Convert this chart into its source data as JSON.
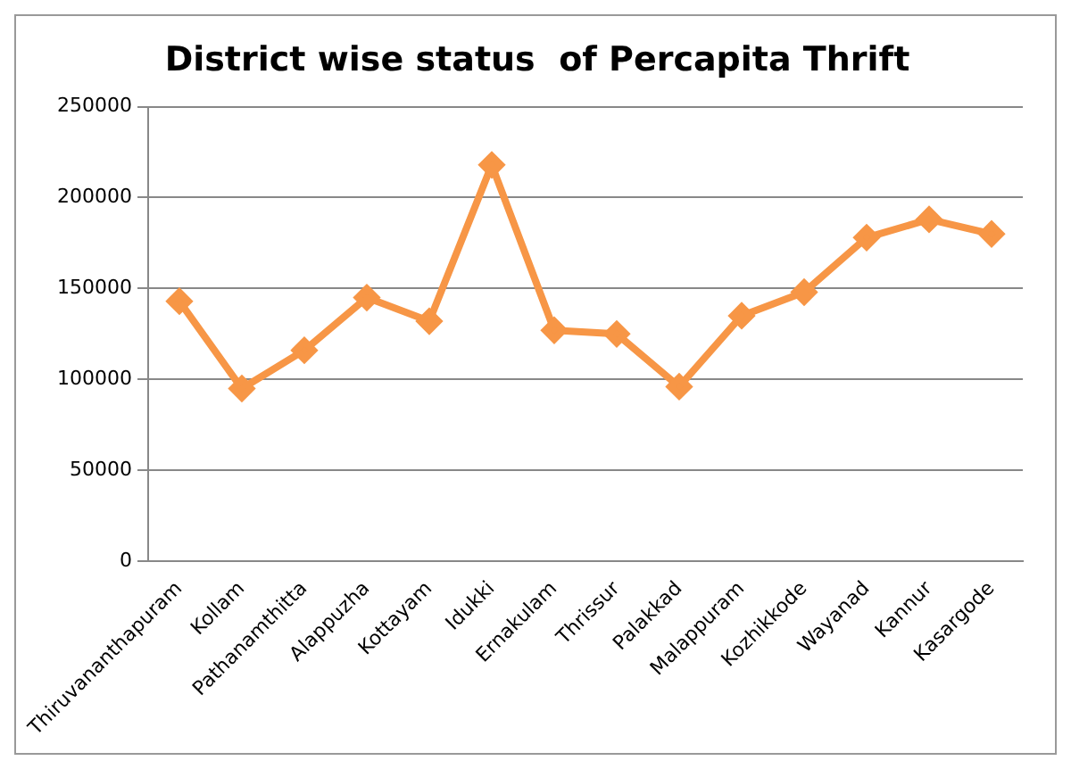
{
  "chart_data": {
    "type": "line",
    "title": "District wise status  of Percapita Thrift",
    "categories": [
      "Thiruvananthapuram",
      "Kollam",
      "Pathanamthitta",
      "Alappuzha",
      "Kottayam",
      "Idukki",
      "Ernakulam",
      "Thrissur",
      "Palakkad",
      "Malappuram",
      "Kozhikkode",
      "Wayanad",
      "Kannur",
      "Kasargode"
    ],
    "series": [
      {
        "color": "#f79646",
        "values": [
          143000,
          95000,
          116000,
          145000,
          132000,
          218000,
          127000,
          125000,
          96000,
          135000,
          148000,
          178000,
          188000,
          180000
        ]
      }
    ],
    "ylim": [
      0,
      250000
    ],
    "yticks": [
      0,
      50000,
      100000,
      150000,
      200000,
      250000
    ],
    "grid": "y",
    "legend": false,
    "marker": "diamond",
    "line_style": "solid"
  }
}
